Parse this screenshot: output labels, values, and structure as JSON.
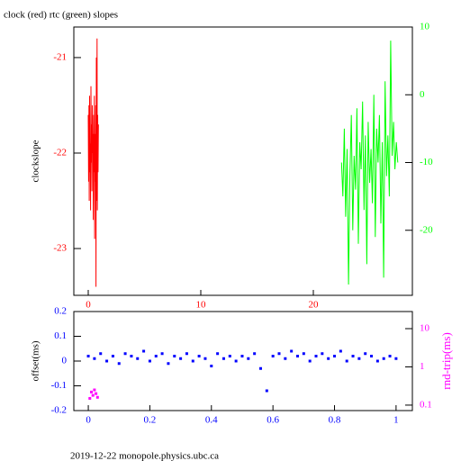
{
  "chart_data": [
    {
      "type": "line",
      "title": "clock (red) rtc (green) slopes",
      "ylabel": "clockslope",
      "xlim": [
        -1.28,
        28.8
      ],
      "xticks": [
        0,
        10,
        20
      ],
      "xtick_color": "#ff0000",
      "ylim": [
        -23.49,
        -20.68
      ],
      "yticks": [
        -21,
        -22,
        -23
      ],
      "ytick_color": "#ff0000",
      "y2lim": [
        -29.6,
        10
      ],
      "y2ticks": [
        10,
        0,
        -10,
        -20
      ],
      "y2tick_color": "#00ff00",
      "series": [
        {
          "color": "#ff0000",
          "x": [
            0.0,
            0.03,
            0.06,
            0.09,
            0.12,
            0.15,
            0.18,
            0.21,
            0.24,
            0.27,
            0.3,
            0.33,
            0.36,
            0.39,
            0.42,
            0.45,
            0.48,
            0.51,
            0.54,
            0.57,
            0.6,
            0.63,
            0.66,
            0.69,
            0.72,
            0.75,
            0.78,
            0.81,
            0.84,
            0.87,
            0.9
          ],
          "values": [
            -21.6,
            -22.3,
            -21.5,
            -22.5,
            -21.4,
            -22.2,
            -21.9,
            -22.6,
            -21.3,
            -22.1,
            -21.7,
            -22.4,
            -21.5,
            -22.0,
            -21.8,
            -22.7,
            -21.6,
            -22.2,
            -21.4,
            -22.9,
            -21.8,
            -22.3,
            -21.5,
            -23.4,
            -21.0,
            -22.5,
            -20.8,
            -22.6,
            -21.6,
            -22.2,
            -21.7
          ]
        },
        {
          "color": "#00ff00",
          "axis": "y2",
          "x": [
            22.5,
            22.625,
            22.75,
            22.875,
            23.0,
            23.125,
            23.25,
            23.375,
            23.5,
            23.625,
            23.75,
            23.875,
            24.0,
            24.125,
            24.25,
            24.375,
            24.5,
            24.625,
            24.75,
            24.875,
            25.0,
            25.125,
            25.25,
            25.375,
            25.5,
            25.625,
            25.75,
            25.875,
            26.0,
            26.125,
            26.25,
            26.375,
            26.5,
            26.625,
            26.75,
            26.875,
            27.0,
            27.125,
            27.25,
            27.375,
            27.5
          ],
          "values": [
            -10,
            -15,
            -5,
            -18,
            -8,
            -28,
            -12,
            -3,
            -20,
            -9,
            -14,
            -2,
            -22,
            -7,
            -11,
            -1,
            -17,
            -6,
            -25,
            -4,
            -13,
            -8,
            -16,
            0,
            -21,
            -5,
            -10,
            -3,
            -19,
            -7,
            -27,
            2,
            -12,
            -6,
            -15,
            8,
            -9,
            -4,
            -11,
            -7,
            -10
          ]
        }
      ]
    },
    {
      "type": "scatter",
      "ylabel": "offset(ms)",
      "y2label": "rnd-trip(ms)",
      "y2label_color": "#ff00ff",
      "xlim": [
        -0.047,
        1.053
      ],
      "xticks": [
        0,
        0.2,
        0.4,
        0.6,
        0.8,
        1
      ],
      "xtick_color": "#0000ff",
      "ylim": [
        -0.2,
        0.2
      ],
      "yticks": [
        0.2,
        0.1,
        0,
        -0.1,
        -0.2
      ],
      "ytick_color": "#0000ff",
      "y2lim": [
        0.072,
        28
      ],
      "y2scale": "log",
      "y2ticks": [
        10,
        1,
        0.1
      ],
      "y2tick_color": "#ff00ff",
      "series": [
        {
          "color": "#0000ff",
          "x": [
            0.0,
            0.02,
            0.04,
            0.06,
            0.08,
            0.1,
            0.12,
            0.14,
            0.16,
            0.18,
            0.2,
            0.22,
            0.24,
            0.26,
            0.28,
            0.3,
            0.32,
            0.34,
            0.36,
            0.38,
            0.4,
            0.42,
            0.44,
            0.46,
            0.48,
            0.5,
            0.52,
            0.54,
            0.56,
            0.58,
            0.6,
            0.62,
            0.64,
            0.66,
            0.68,
            0.7,
            0.72,
            0.74,
            0.76,
            0.78,
            0.8,
            0.82,
            0.84,
            0.86,
            0.88,
            0.9,
            0.92,
            0.94,
            0.96,
            0.98,
            1.0
          ],
          "values": [
            0.02,
            0.01,
            0.03,
            0.0,
            0.02,
            -0.01,
            0.03,
            0.02,
            0.01,
            0.04,
            0.0,
            0.02,
            0.03,
            -0.01,
            0.02,
            0.01,
            0.03,
            0.0,
            0.02,
            0.01,
            -0.02,
            0.03,
            0.01,
            0.02,
            0.0,
            0.02,
            0.01,
            0.03,
            -0.03,
            -0.12,
            0.02,
            0.03,
            0.01,
            0.04,
            0.02,
            0.03,
            0.0,
            0.02,
            0.03,
            0.01,
            0.02,
            0.04,
            0.0,
            0.02,
            0.01,
            0.03,
            0.02,
            0.0,
            0.01,
            0.02,
            0.01
          ]
        },
        {
          "color": "#ff00ff",
          "axis": "y2",
          "x": [
            0.005,
            0.01,
            0.015,
            0.02,
            0.025,
            0.03
          ],
          "values": [
            0.15,
            0.22,
            0.18,
            0.25,
            0.2,
            0.16
          ]
        }
      ]
    }
  ],
  "footer": "2019-12-22 monopole.physics.ubc.ca"
}
